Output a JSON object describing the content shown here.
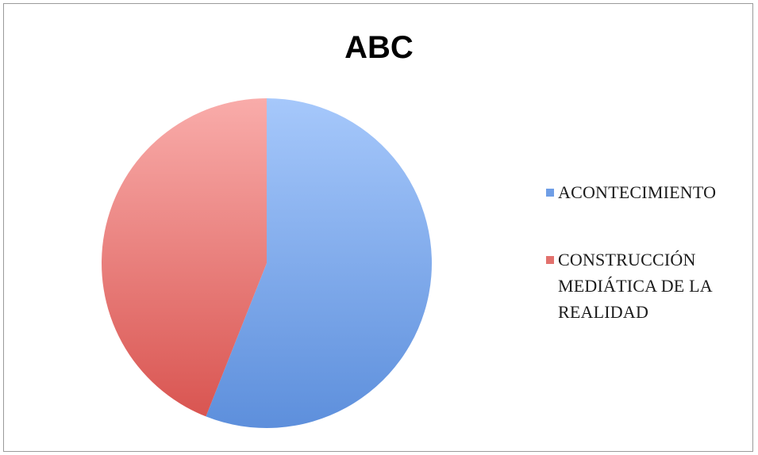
{
  "chart_data": {
    "type": "pie",
    "title": "ABC",
    "slices": [
      {
        "label": "ACONTECIMIENTO",
        "value": 56,
        "color": "#6f9ee6",
        "color_light": "#a6c8fb",
        "color_dark": "#5d8fdc"
      },
      {
        "label": "CONSTRUCCIÓN\nMEDIÁTICA DE LA\nREALIDAD",
        "value": 44,
        "color": "#e2716d",
        "color_light": "#f9acaa",
        "color_dark": "#d95551"
      }
    ],
    "legend_position": "right"
  }
}
